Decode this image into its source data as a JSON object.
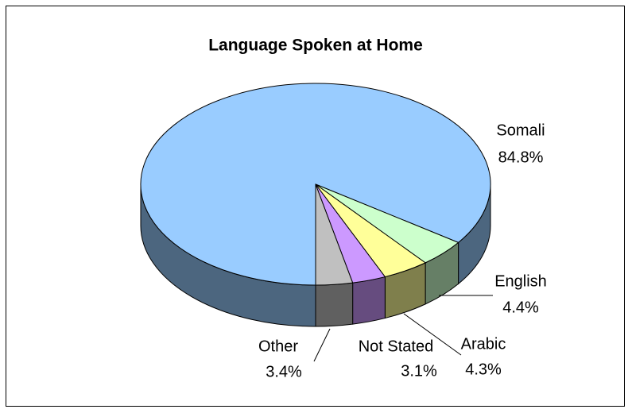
{
  "chart_data": {
    "type": "pie",
    "title": "Language Spoken at Home",
    "categories": [
      "Somali",
      "English",
      "Arabic",
      "Not Stated",
      "Other"
    ],
    "values": [
      84.8,
      4.4,
      4.3,
      3.1,
      3.4
    ],
    "value_labels": [
      "84.8%",
      "4.4%",
      "4.3%",
      "3.1%",
      "3.4%"
    ],
    "colors": [
      "#99ccff",
      "#ccffcc",
      "#ffff99",
      "#cc99ff",
      "#c0c0c0"
    ]
  }
}
